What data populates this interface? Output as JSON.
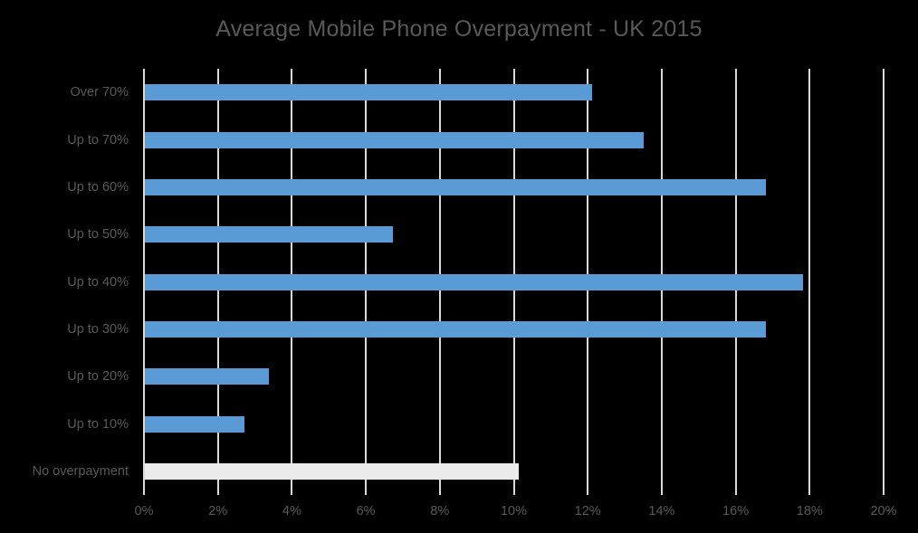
{
  "chart_data": {
    "type": "bar",
    "orientation": "horizontal",
    "title": "Average Mobile Phone Overpayment - UK 2015",
    "xlabel": "",
    "ylabel": "",
    "xlim": [
      0,
      20
    ],
    "grid": true,
    "legend": null,
    "categories": [
      "Over 70%",
      "Up to 70%",
      "Up to 60%",
      "Up to 50%",
      "Up to 40%",
      "Up to 30%",
      "Up to 20%",
      "Up to 10%",
      "No overpayment"
    ],
    "values": [
      12.1,
      13.5,
      16.8,
      6.7,
      17.8,
      16.8,
      3.35,
      2.7,
      10.1
    ],
    "bar_colors": [
      "#5b9bd5",
      "#5b9bd5",
      "#5b9bd5",
      "#5b9bd5",
      "#5b9bd5",
      "#5b9bd5",
      "#5b9bd5",
      "#5b9bd5",
      "#ececec"
    ],
    "x_ticks": [
      "0%",
      "2%",
      "4%",
      "6%",
      "8%",
      "10%",
      "12%",
      "14%",
      "16%",
      "18%",
      "20%"
    ]
  },
  "colors": {
    "background": "#000000",
    "bar": "#5b9bd5",
    "highlight_bar": "#ececec",
    "gridline": "#d9d9d9",
    "text": "#595959"
  }
}
